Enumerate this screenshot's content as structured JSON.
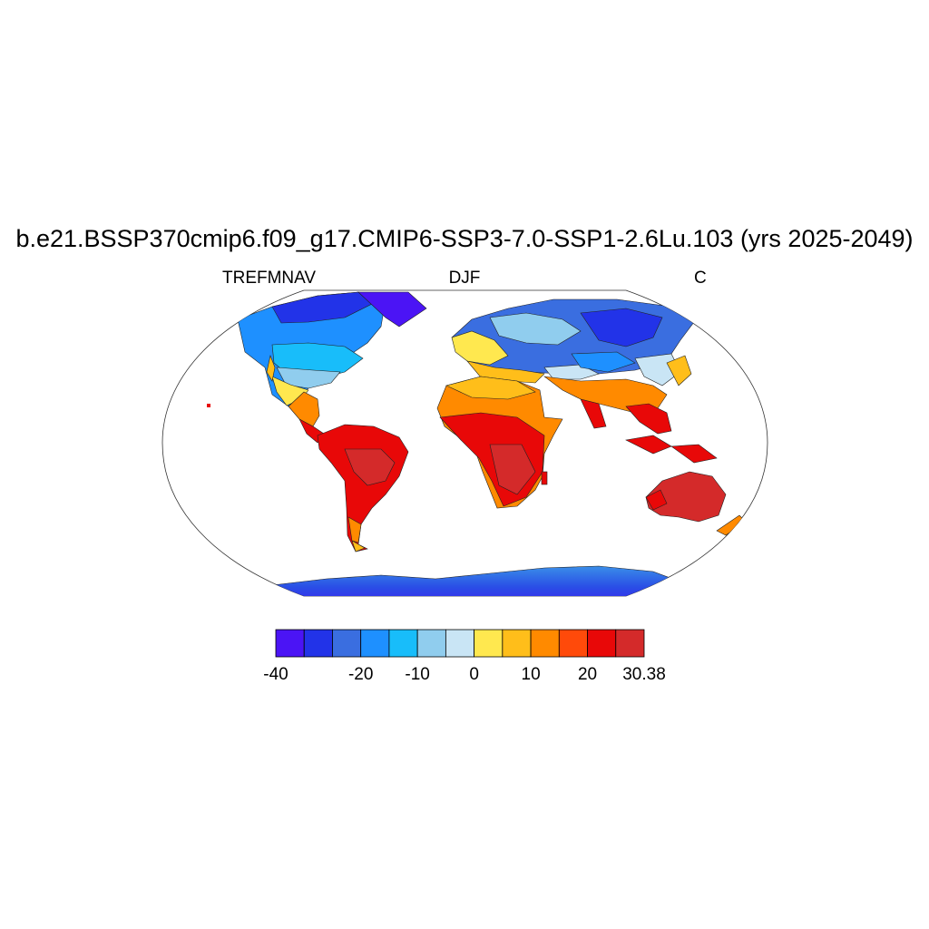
{
  "figure": {
    "title": "b.e21.BSSP370cmip6.f09_g17.CMIP6-SSP3-7.0-SSP1-2.6Lu.103 (yrs 2025-2049)",
    "left_label": "TREFMNAV",
    "center_label": "DJF",
    "right_label": "C"
  },
  "map": {
    "projection": "Robinson",
    "variable": "TREFMNAV",
    "season": "DJF",
    "units": "C"
  },
  "colorbar": {
    "colors": [
      "#4b14f5",
      "#2233e8",
      "#3a6ee0",
      "#1e90ff",
      "#18bdfa",
      "#90cdee",
      "#c9e5f5",
      "#ffe84f",
      "#ffbe1a",
      "#ff8a00",
      "#ff4a0a",
      "#e80808",
      "#d42a2a"
    ],
    "tick_labels": [
      "-40",
      "-20",
      "-10",
      "0",
      "10",
      "20",
      "30.38"
    ],
    "tick_positions": [
      0,
      2,
      3,
      4,
      5,
      6,
      7
    ]
  }
}
